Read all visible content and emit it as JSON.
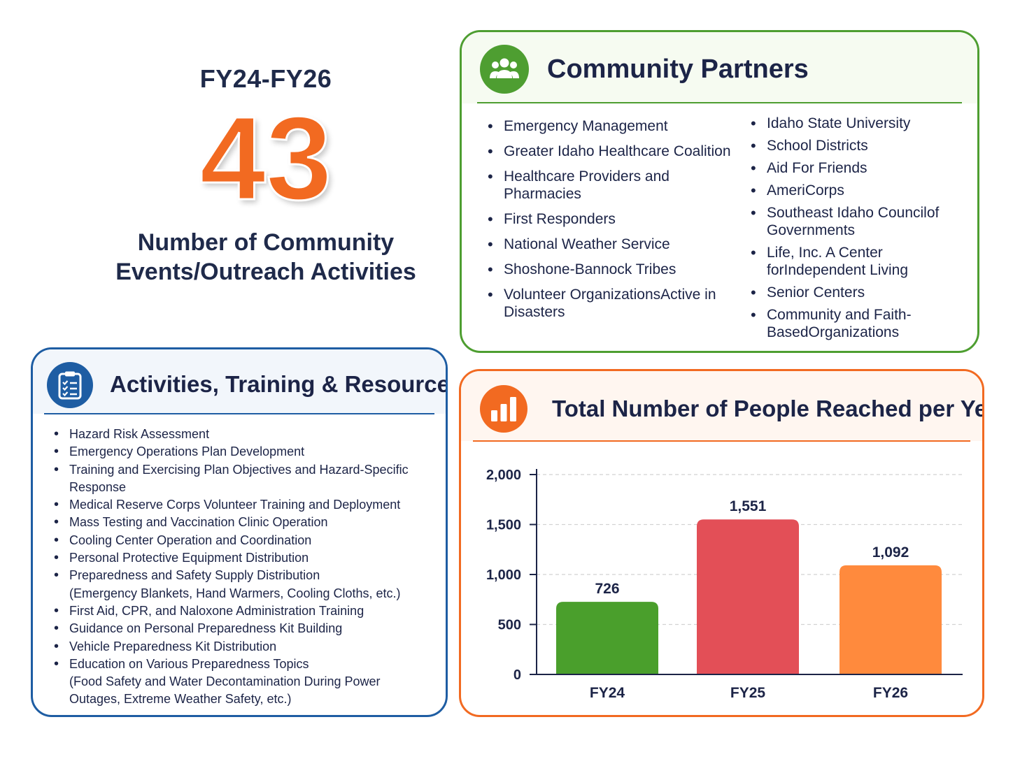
{
  "hero": {
    "period": "FY24-FY26",
    "number": "43",
    "caption_line1": "Number of Community",
    "caption_line2": "Events/Outreach Activities"
  },
  "partners": {
    "title": "Community Partners",
    "icon": "people-group-icon",
    "left_items": [
      [
        "Emergency Management"
      ],
      [
        "Greater Idaho Healthcare Coalition"
      ],
      [
        "Healthcare Providers and Pharmacies"
      ],
      [
        "First Responders"
      ],
      [
        "National Weather Service"
      ],
      [
        "Shoshone-Bannock Tribes"
      ],
      [
        "Volunteer Organizations",
        "Active in Disasters"
      ]
    ],
    "right_items": [
      [
        "Idaho State University"
      ],
      [
        "School Districts"
      ],
      [
        "Aid For Friends"
      ],
      [
        "AmeriCorps"
      ],
      [
        "Southeast Idaho Council",
        "of Governments"
      ],
      [
        "Life, Inc. A Center for",
        "Independent Living"
      ],
      [
        "Senior Centers"
      ],
      [
        "Community and Faith-Based",
        "Organizations"
      ]
    ]
  },
  "activities": {
    "title": "Activities, Training & Resources",
    "icon": "clipboard-checklist-icon",
    "items": [
      [
        "Hazard Risk Assessment"
      ],
      [
        "Emergency Operations Plan Development"
      ],
      [
        "Training and Exercising Plan Objectives and Hazard-Specific Response"
      ],
      [
        "Medical Reserve Corps Volunteer Training and Deployment"
      ],
      [
        "Mass Testing and Vaccination Clinic Operation"
      ],
      [
        "Cooling Center Operation and Coordination"
      ],
      [
        "Personal Protective Equipment Distribution"
      ],
      [
        "Preparedness and Safety Supply Distribution",
        "(Emergency Blankets, Hand Warmers, Cooling Cloths, etc.)"
      ],
      [
        "First Aid, CPR, and Naloxone Administration Training"
      ],
      [
        "Guidance on Personal Preparedness Kit Building"
      ],
      [
        "Vehicle Preparedness Kit Distribution"
      ],
      [
        "Education on Various Preparedness Topics",
        "(Food Safety and Water Decontamination During Power",
        "Outages, Extreme Weather Safety, etc.)"
      ]
    ]
  },
  "chart_panel": {
    "title": "Total Number of People Reached per Year",
    "icon": "bar-chart-icon"
  },
  "colors": {
    "green": "#4e9e31",
    "blue": "#1e5da3",
    "orange": "#f26a21",
    "bar_fy24": "#4a9f2c",
    "bar_fy25": "#e34f57",
    "bar_fy26": "#ff8a3d"
  },
  "chart_data": {
    "type": "bar",
    "title": "Total Number of People Reached per Year",
    "categories": [
      "FY24",
      "FY25",
      "FY26"
    ],
    "values": [
      726,
      1551,
      1092
    ],
    "value_labels": [
      "726",
      "1,551",
      "1,092"
    ],
    "bar_colors": [
      "#4a9f2c",
      "#e34f57",
      "#ff8a3d"
    ],
    "ylim": [
      0,
      2000
    ],
    "yticks": [
      0,
      500,
      1000,
      1500,
      2000
    ],
    "ytick_labels": [
      "0",
      "500",
      "1,000",
      "1,500",
      "2,000"
    ],
    "xlabel": "",
    "ylabel": "",
    "grid": true
  }
}
